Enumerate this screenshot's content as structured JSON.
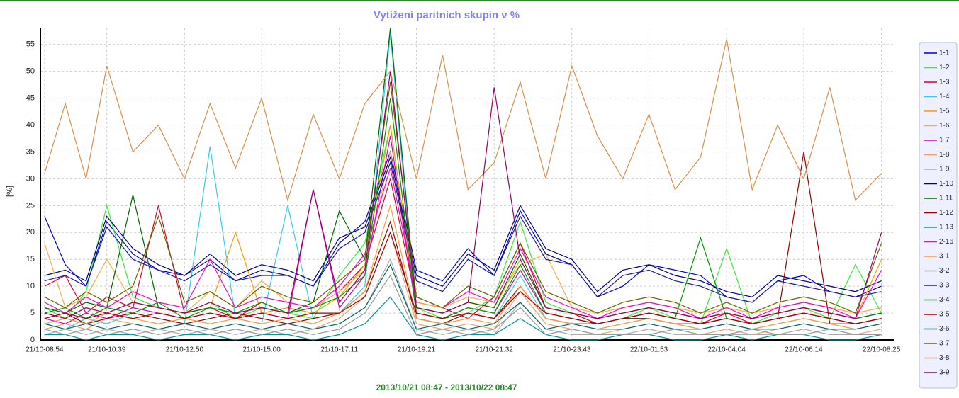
{
  "chart_data": {
    "type": "line",
    "title": "Vytížení paritních skupin v %",
    "xlabel": "2013/10/21 08:47 - 2013/10/22 08:47",
    "ylabel": "[%]",
    "xlim": [
      "21/10-08:47",
      "22/10-08:47"
    ],
    "x": [
      "21/10-08:54",
      "21/10-09:29",
      "21/10-10:04",
      "21/10-10:39",
      "21/10-11:23",
      "21/10-12:06",
      "21/10-12:50",
      "21/10-13:33",
      "21/10-14:16",
      "21/10-15:00",
      "21/10-15:44",
      "21/10-16:27",
      "21/10-17:11",
      "21/10-17:54",
      "21/10-18:37",
      "21/10-19:21",
      "21/10-20:05",
      "21/10-20:48",
      "21/10-21:32",
      "21/10-22:16",
      "21/10-22:59",
      "21/10-23:43",
      "22/10-00:26",
      "22/10-01:09",
      "22/10-01:53",
      "22/10-02:37",
      "22/10-03:20",
      "22/10-04:04",
      "22/10-04:47",
      "22/10-05:30",
      "22/10-06:14",
      "22/10-06:58",
      "22/10-07:41",
      "22/10-08:25"
    ],
    "xticks": [
      "21/10-08:54",
      "21/10-10:39",
      "21/10-12:50",
      "21/10-15:00",
      "21/10-17:11",
      "21/10-19:21",
      "21/10-21:32",
      "21/10-23:43",
      "22/10-01:53",
      "22/10-04:04",
      "22/10-06:14",
      "22/10-08:25"
    ],
    "ylim": [
      0,
      58
    ],
    "yticks": [
      0,
      5,
      10,
      15,
      20,
      25,
      30,
      35,
      40,
      45,
      50,
      55
    ],
    "grid": true,
    "series": [
      {
        "name": "1-1",
        "color": "#0000cc",
        "values": [
          23,
          14,
          10,
          22,
          16,
          13,
          12,
          15,
          11,
          13,
          12,
          10,
          18,
          22,
          35,
          13,
          11,
          17,
          12,
          24,
          16,
          14,
          8,
          10,
          14,
          13,
          12,
          8,
          7,
          11,
          12,
          9,
          8,
          10
        ]
      },
      {
        "name": "1-2",
        "color": "#33ee33",
        "values": [
          6,
          4,
          9,
          25,
          8,
          6,
          5,
          7,
          4,
          6,
          5,
          4,
          12,
          18,
          40,
          6,
          4,
          5,
          8,
          22,
          7,
          5,
          3,
          4,
          6,
          4,
          3,
          17,
          3,
          5,
          6,
          4,
          14,
          5
        ]
      },
      {
        "name": "1-3",
        "color": "#dd0022",
        "values": [
          10,
          12,
          5,
          8,
          6,
          25,
          5,
          6,
          4,
          7,
          5,
          6,
          9,
          14,
          30,
          7,
          6,
          4,
          8,
          18,
          6,
          5,
          3,
          4,
          5,
          4,
          3,
          5,
          3,
          4,
          5,
          4,
          3,
          4
        ]
      },
      {
        "name": "1-4",
        "color": "#33ccee",
        "values": [
          3,
          2,
          4,
          3,
          5,
          4,
          3,
          36,
          4,
          3,
          25,
          4,
          5,
          10,
          57,
          4,
          3,
          5,
          4,
          12,
          4,
          3,
          2,
          3,
          4,
          3,
          2,
          3,
          2,
          3,
          4,
          3,
          2,
          3
        ]
      },
      {
        "name": "1-5",
        "color": "#ff9900",
        "values": [
          5,
          4,
          6,
          5,
          7,
          6,
          5,
          6,
          20,
          5,
          6,
          5,
          8,
          14,
          40,
          6,
          5,
          7,
          6,
          15,
          6,
          5,
          4,
          5,
          6,
          5,
          4,
          5,
          4,
          5,
          6,
          5,
          4,
          15
        ]
      },
      {
        "name": "1-6",
        "color": "#ffaa44",
        "values": [
          18,
          6,
          8,
          15,
          7,
          6,
          5,
          9,
          6,
          11,
          7,
          6,
          9,
          13,
          35,
          7,
          6,
          8,
          7,
          14,
          16,
          6,
          5,
          6,
          7,
          6,
          5,
          6,
          5,
          6,
          7,
          6,
          5,
          6
        ]
      },
      {
        "name": "1-7",
        "color": "#cc00cc",
        "values": [
          4,
          3,
          5,
          4,
          6,
          5,
          4,
          5,
          4,
          5,
          4,
          28,
          6,
          12,
          38,
          5,
          4,
          6,
          5,
          13,
          5,
          4,
          3,
          4,
          5,
          4,
          3,
          4,
          3,
          4,
          5,
          4,
          3,
          4
        ]
      },
      {
        "name": "1-8",
        "color": "#f0a070",
        "values": [
          2,
          3,
          2,
          4,
          3,
          2,
          3,
          2,
          3,
          2,
          3,
          2,
          4,
          8,
          20,
          3,
          2,
          3,
          2,
          9,
          3,
          2,
          1,
          2,
          3,
          2,
          1,
          2,
          1,
          2,
          3,
          2,
          1,
          2
        ]
      },
      {
        "name": "1-9",
        "color": "#aaaaaa",
        "values": [
          1,
          2,
          1,
          2,
          1,
          2,
          1,
          2,
          1,
          2,
          1,
          2,
          3,
          6,
          15,
          2,
          1,
          2,
          1,
          7,
          2,
          1,
          1,
          1,
          2,
          1,
          1,
          1,
          1,
          1,
          2,
          1,
          1,
          1
        ]
      },
      {
        "name": "1-10",
        "color": "#000088",
        "values": [
          12,
          13,
          11,
          23,
          17,
          14,
          12,
          16,
          12,
          14,
          13,
          11,
          19,
          21,
          34,
          12,
          10,
          16,
          13,
          25,
          17,
          15,
          9,
          13,
          14,
          12,
          11,
          9,
          8,
          12,
          11,
          10,
          9,
          11
        ]
      },
      {
        "name": "1-11",
        "color": "#006600",
        "values": [
          6,
          5,
          7,
          6,
          27,
          6,
          5,
          6,
          5,
          6,
          5,
          7,
          24,
          15,
          58,
          6,
          5,
          7,
          6,
          16,
          6,
          5,
          4,
          5,
          6,
          5,
          4,
          5,
          4,
          5,
          6,
          5,
          4,
          5
        ]
      },
      {
        "name": "1-12",
        "color": "#990000",
        "values": [
          4,
          5,
          3,
          4,
          5,
          4,
          3,
          4,
          5,
          4,
          3,
          4,
          5,
          9,
          22,
          4,
          3,
          5,
          4,
          10,
          4,
          3,
          3,
          4,
          4,
          3,
          3,
          4,
          3,
          4,
          35,
          3,
          3,
          4
        ]
      },
      {
        "name": "1-13",
        "color": "#009999",
        "values": [
          1,
          1,
          0,
          1,
          1,
          0,
          1,
          1,
          0,
          1,
          1,
          0,
          1,
          3,
          8,
          1,
          0,
          1,
          1,
          4,
          1,
          0,
          0,
          1,
          1,
          0,
          0,
          1,
          0,
          1,
          1,
          0,
          0,
          1
        ]
      },
      {
        "name": "2-16",
        "color": "#ff00cc",
        "values": [
          7,
          5,
          8,
          6,
          9,
          7,
          6,
          15,
          6,
          8,
          7,
          6,
          10,
          16,
          32,
          8,
          6,
          9,
          7,
          17,
          8,
          6,
          4,
          6,
          7,
          6,
          4,
          6,
          4,
          6,
          7,
          6,
          4,
          13
        ]
      },
      {
        "name": "3-1",
        "color": "#ff9933",
        "values": [
          3,
          4,
          3,
          5,
          4,
          3,
          4,
          3,
          4,
          3,
          4,
          3,
          5,
          9,
          25,
          4,
          3,
          4,
          3,
          10,
          4,
          3,
          2,
          3,
          4,
          3,
          2,
          3,
          2,
          3,
          4,
          3,
          2,
          3
        ]
      },
      {
        "name": "3-2",
        "color": "#999999",
        "values": [
          2,
          1,
          2,
          1,
          2,
          1,
          2,
          1,
          2,
          1,
          2,
          1,
          2,
          5,
          12,
          1,
          2,
          1,
          2,
          6,
          1,
          2,
          1,
          1,
          1,
          2,
          1,
          1,
          2,
          1,
          1,
          2,
          1,
          1
        ]
      },
      {
        "name": "3-3",
        "color": "#1a1a99",
        "values": [
          11,
          12,
          10,
          21,
          15,
          13,
          11,
          14,
          11,
          12,
          12,
          10,
          17,
          20,
          33,
          11,
          9,
          15,
          12,
          23,
          15,
          14,
          8,
          12,
          13,
          11,
          10,
          8,
          7,
          11,
          10,
          9,
          8,
          9
        ]
      },
      {
        "name": "3-4",
        "color": "#009900",
        "values": [
          5,
          6,
          4,
          6,
          5,
          7,
          4,
          6,
          5,
          7,
          5,
          6,
          8,
          12,
          45,
          5,
          4,
          6,
          5,
          14,
          5,
          4,
          3,
          4,
          5,
          4,
          19,
          4,
          3,
          4,
          5,
          4,
          3,
          4
        ]
      },
      {
        "name": "3-5",
        "color": "#aa0000",
        "values": [
          4,
          5,
          4,
          5,
          4,
          5,
          4,
          5,
          4,
          5,
          4,
          5,
          5,
          8,
          20,
          5,
          4,
          5,
          4,
          9,
          5,
          4,
          3,
          4,
          5,
          4,
          3,
          4,
          3,
          4,
          5,
          4,
          3,
          4
        ]
      },
      {
        "name": "3-6",
        "color": "#006666",
        "values": [
          3,
          2,
          3,
          2,
          3,
          2,
          3,
          2,
          3,
          2,
          3,
          2,
          3,
          6,
          14,
          2,
          3,
          2,
          3,
          7,
          2,
          3,
          2,
          2,
          3,
          2,
          2,
          3,
          2,
          2,
          3,
          2,
          2,
          3
        ]
      },
      {
        "name": "3-7",
        "color": "#666600",
        "values": [
          8,
          6,
          9,
          7,
          10,
          23,
          7,
          9,
          6,
          10,
          8,
          7,
          11,
          15,
          48,
          8,
          6,
          10,
          8,
          18,
          9,
          7,
          5,
          7,
          8,
          7,
          5,
          7,
          5,
          7,
          8,
          7,
          5,
          18
        ]
      },
      {
        "name": "3-8",
        "color": "#d9904a",
        "values": [
          31,
          44,
          30,
          51,
          35,
          40,
          30,
          44,
          32,
          45,
          26,
          42,
          30,
          44,
          50,
          30,
          53,
          28,
          33,
          48,
          30,
          51,
          38,
          30,
          42,
          28,
          34,
          56,
          28,
          40,
          30,
          47,
          26,
          31
        ]
      },
      {
        "name": "3-9",
        "color": "#990066",
        "values": [
          5,
          4,
          6,
          5,
          7,
          6,
          5,
          7,
          5,
          6,
          5,
          28,
          7,
          13,
          50,
          6,
          5,
          7,
          47,
          15,
          6,
          5,
          4,
          5,
          6,
          5,
          4,
          5,
          4,
          5,
          6,
          5,
          4,
          20
        ]
      }
    ]
  }
}
